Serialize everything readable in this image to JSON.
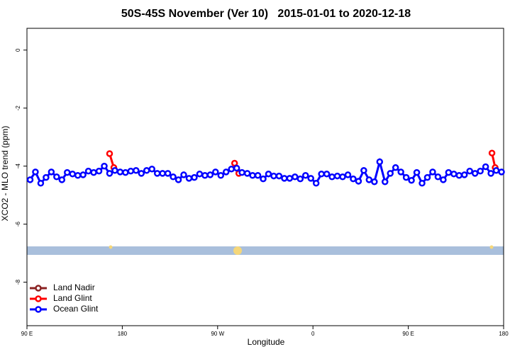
{
  "chart_data": {
    "type": "line",
    "title": "50S-45S November (Ver 10)   2015-01-01 to 2020-12-18",
    "x_label": "Longitude",
    "y_label": "XCO2 - MLO trend (ppm)",
    "xlim": [
      90,
      540
    ],
    "ylim": [
      -9.5,
      0.75
    ],
    "xticks": [
      {
        "value": 90,
        "label": "90 E"
      },
      180,
      {
        "value": 270,
        "label": "90 W"
      },
      {
        "value": 360,
        "label": "0"
      },
      {
        "value": 450,
        "label": "90 E"
      },
      {
        "value": 540,
        "label": "180"
      }
    ],
    "yticks": [
      0,
      -2,
      -4,
      -6,
      -8
    ],
    "legend": "bottomleft",
    "series": [
      {
        "name": "Land Nadir",
        "color": "#8b2323",
        "x": [],
        "values": []
      },
      {
        "name": "Land Glint",
        "color": "#ff0000",
        "x": [
          168,
          172,
          200,
          286,
          290,
          400,
          529,
          532
        ],
        "values": [
          -3.57,
          -4.05,
          null,
          -3.9,
          -4.25,
          null,
          -3.55,
          -4.05
        ]
      },
      {
        "name": "Ocean Glint",
        "color": "#0000ff",
        "x": [
          93,
          98,
          103,
          108,
          113,
          118,
          123,
          128,
          133,
          138,
          143,
          148,
          153,
          158,
          163,
          168,
          173,
          178,
          183,
          188,
          193,
          198,
          203,
          208,
          213,
          218,
          223,
          228,
          233,
          238,
          243,
          248,
          253,
          258,
          263,
          268,
          273,
          278,
          283,
          288,
          293,
          298,
          303,
          308,
          313,
          318,
          323,
          328,
          333,
          338,
          343,
          348,
          353,
          358,
          363,
          368,
          373,
          378,
          383,
          388,
          393,
          398,
          403,
          408,
          413,
          418,
          423,
          428,
          433,
          438,
          443,
          448,
          453,
          458,
          463,
          468,
          473,
          478,
          483,
          488,
          493,
          498,
          503,
          508,
          513,
          518,
          523,
          528,
          533,
          538
        ],
        "values": [
          -4.47,
          -4.2,
          -4.59,
          -4.39,
          -4.2,
          -4.37,
          -4.47,
          -4.22,
          -4.27,
          -4.32,
          -4.3,
          -4.17,
          -4.22,
          -4.17,
          -4.0,
          -4.25,
          -4.15,
          -4.2,
          -4.22,
          -4.17,
          -4.15,
          -4.25,
          -4.15,
          -4.1,
          -4.25,
          -4.25,
          -4.25,
          -4.37,
          -4.47,
          -4.3,
          -4.42,
          -4.39,
          -4.27,
          -4.32,
          -4.3,
          -4.2,
          -4.32,
          -4.2,
          -4.1,
          -4.07,
          -4.22,
          -4.25,
          -4.32,
          -4.32,
          -4.44,
          -4.27,
          -4.34,
          -4.34,
          -4.42,
          -4.42,
          -4.37,
          -4.44,
          -4.32,
          -4.42,
          -4.59,
          -4.27,
          -4.27,
          -4.37,
          -4.34,
          -4.37,
          -4.3,
          -4.44,
          -4.52,
          -4.15,
          -4.47,
          -4.54,
          -3.85,
          -4.54,
          -4.25,
          -4.05,
          -4.2,
          -4.39,
          -4.49,
          -4.22,
          -4.59,
          -4.39,
          -4.2,
          -4.37,
          -4.47,
          -4.22,
          -4.27,
          -4.32,
          -4.3,
          -4.17,
          -4.25,
          -4.17,
          -4.02,
          -4.25,
          -4.15,
          -4.2
        ]
      }
    ]
  }
}
